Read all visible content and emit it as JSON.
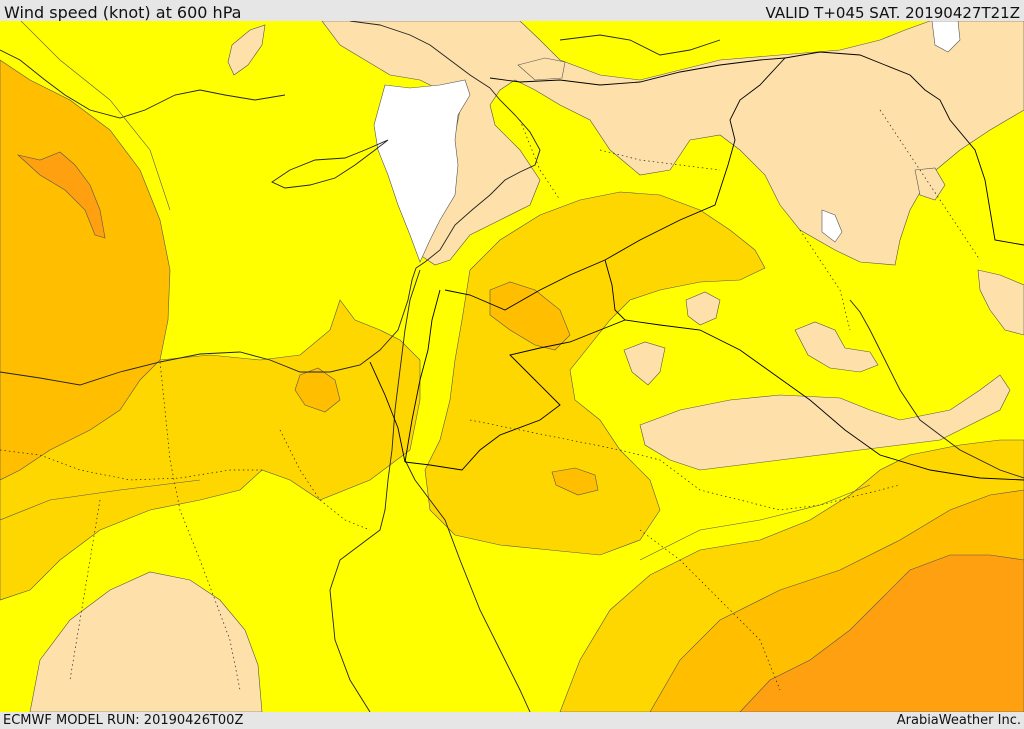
{
  "header": {
    "title": "Wind speed (knot) at 600 hPa",
    "valid": "VALID T+045 SAT. 20190427T21Z"
  },
  "footer": {
    "model_run": "ECMWF MODEL RUN: 20190426T00Z",
    "credit": "ArabiaWeather Inc."
  },
  "map": {
    "fill_colors": {
      "calm_white": "#ffffff",
      "light_peach": "#fde0aa",
      "yellow": "#ffff00",
      "gold": "#ffd700",
      "amber": "#ffbe00",
      "orange": "#ffa010",
      "deep_orange": "#ff8c1a"
    },
    "line_colors": {
      "coast": "#222222",
      "contour": "#555555",
      "border": "#000000"
    }
  }
}
